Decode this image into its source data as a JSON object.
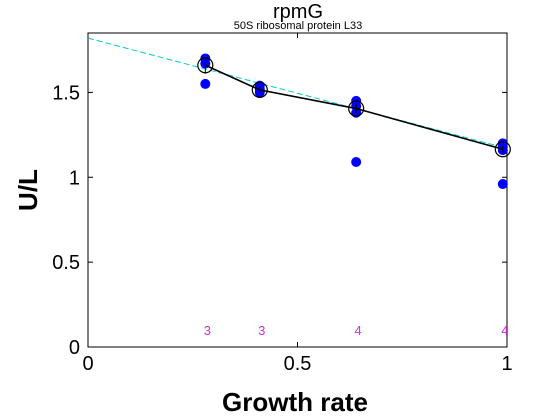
{
  "chart_data": {
    "type": "scatter",
    "title": "rpmG",
    "subtitle": "50S ribosomal protein L33",
    "xlabel": "Growth rate",
    "ylabel": "U/L",
    "xlim": [
      0,
      1.0
    ],
    "ylim": [
      0,
      1.85
    ],
    "x_ticks": [
      "0",
      "0.5",
      "1"
    ],
    "y_ticks": [
      "0",
      "0.5",
      "1",
      "1.5"
    ],
    "x_tick_values": [
      0,
      0.5,
      1
    ],
    "y_tick_values": [
      0,
      0.5,
      1,
      1.5
    ],
    "grid": false,
    "colors": {
      "points": "#0000ff",
      "mean_line": "#000000",
      "fit_line": "#00cccc",
      "counts": "#cc33cc"
    },
    "points": [
      {
        "x": 0.28,
        "y": 1.7
      },
      {
        "x": 0.28,
        "y": 1.67
      },
      {
        "x": 0.28,
        "y": 1.55
      },
      {
        "x": 0.41,
        "y": 1.54
      },
      {
        "x": 0.41,
        "y": 1.52
      },
      {
        "x": 0.41,
        "y": 1.5
      },
      {
        "x": 0.64,
        "y": 1.45
      },
      {
        "x": 0.64,
        "y": 1.42
      },
      {
        "x": 0.64,
        "y": 1.38
      },
      {
        "x": 0.64,
        "y": 1.09
      },
      {
        "x": 0.99,
        "y": 1.2
      },
      {
        "x": 0.99,
        "y": 1.18
      },
      {
        "x": 0.99,
        "y": 1.16
      },
      {
        "x": 0.99,
        "y": 0.96
      }
    ],
    "means": [
      {
        "x": 0.28,
        "y": 1.66,
        "err": 0.05
      },
      {
        "x": 0.41,
        "y": 1.515,
        "err": 0.02
      },
      {
        "x": 0.64,
        "y": 1.405,
        "err": 0.03
      },
      {
        "x": 0.99,
        "y": 1.165,
        "err": 0.02
      }
    ],
    "fit_line": [
      {
        "x": 0,
        "y": 1.82
      },
      {
        "x": 1.0,
        "y": 1.17
      }
    ],
    "counts": [
      {
        "x": 0.28,
        "label": "3"
      },
      {
        "x": 0.41,
        "label": "3"
      },
      {
        "x": 0.64,
        "label": "4"
      },
      {
        "x": 0.99,
        "label": "4"
      }
    ],
    "count_y": 0.1
  }
}
